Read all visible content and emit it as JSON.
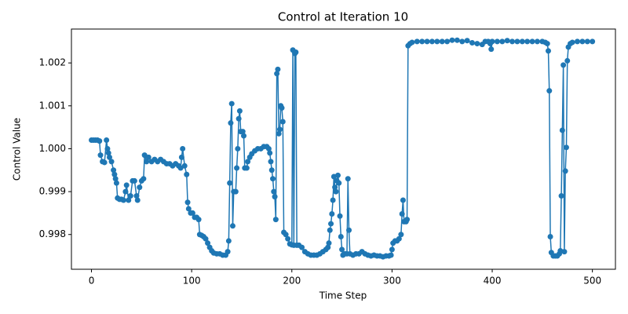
{
  "chart_data": {
    "type": "line",
    "title": "Control at Iteration 10",
    "x_label": "Time Step",
    "y_label": "Control Value",
    "series": [
      {
        "name": "Control",
        "color": "#1f77b4",
        "x": [
          0,
          2,
          4,
          6,
          8,
          9,
          11,
          13,
          15,
          16,
          17,
          18,
          20,
          22,
          23,
          24,
          25,
          26,
          28,
          30,
          32,
          34,
          35,
          37,
          39,
          41,
          43,
          45,
          46,
          48,
          50,
          52,
          53,
          55,
          57,
          60,
          63,
          66,
          69,
          72,
          75,
          78,
          81,
          84,
          87,
          89,
          90,
          91,
          93,
          95,
          96,
          97,
          99,
          101,
          103,
          105,
          107,
          108,
          110,
          112,
          114,
          116,
          118,
          120,
          122,
          125,
          128,
          131,
          134,
          136,
          137,
          138,
          139,
          140,
          141,
          142,
          144,
          145,
          146,
          147,
          148,
          149,
          151,
          152,
          153,
          155,
          156,
          158,
          160,
          163,
          166,
          169,
          172,
          175,
          177,
          178,
          179,
          180,
          181,
          182,
          183,
          184,
          185,
          186,
          187,
          188,
          189,
          190,
          191,
          192,
          194,
          196,
          198,
          200,
          201,
          202,
          203,
          204,
          205,
          207,
          210,
          213,
          216,
          219,
          222,
          225,
          228,
          231,
          234,
          236,
          237,
          238,
          239,
          240,
          241,
          242,
          243,
          244,
          245,
          246,
          247,
          248,
          249,
          250,
          251,
          253,
          255,
          256,
          257,
          258,
          261,
          264,
          267,
          270,
          273,
          276,
          279,
          282,
          285,
          288,
          291,
          294,
          297,
          299,
          300,
          301,
          303,
          305,
          307,
          309,
          310,
          311,
          312,
          314,
          315,
          316,
          318,
          320,
          325,
          330,
          335,
          340,
          345,
          350,
          355,
          360,
          365,
          370,
          375,
          380,
          385,
          390,
          393,
          396,
          398,
          399,
          400,
          405,
          410,
          415,
          420,
          425,
          430,
          435,
          440,
          445,
          450,
          453,
          455,
          456,
          457,
          458,
          459,
          461,
          463,
          465,
          467,
          468,
          469,
          470,
          471,
          472,
          473,
          474,
          475,
          476,
          478,
          480,
          485,
          490,
          495,
          500
        ],
        "values": [
          1.0002,
          1.0002,
          1.0002,
          1.0002,
          1.00018,
          0.99985,
          0.9997,
          0.99968,
          1.0002,
          1.0,
          0.9999,
          0.9998,
          0.9997,
          0.9995,
          0.9994,
          0.9993,
          0.9992,
          0.99885,
          0.99882,
          0.99882,
          0.9988,
          0.999,
          0.99915,
          0.9988,
          0.9989,
          0.99925,
          0.99925,
          0.9989,
          0.9988,
          0.9991,
          0.99925,
          0.9993,
          0.99985,
          0.9997,
          0.9998,
          0.9997,
          0.99975,
          0.9997,
          0.99975,
          0.9997,
          0.99965,
          0.99965,
          0.9996,
          0.99965,
          0.9996,
          0.99955,
          0.9998,
          1.0,
          0.9996,
          0.9994,
          0.99875,
          0.9986,
          0.9985,
          0.9985,
          0.9984,
          0.9984,
          0.99835,
          0.998,
          0.99798,
          0.99795,
          0.9979,
          0.9978,
          0.9977,
          0.99762,
          0.99757,
          0.99755,
          0.99755,
          0.99752,
          0.99752,
          0.9976,
          0.99785,
          0.9992,
          1.0006,
          1.00105,
          0.9982,
          0.999,
          0.999,
          0.99955,
          1.0,
          1.0007,
          1.00088,
          1.0004,
          1.0004,
          1.0003,
          0.99955,
          0.99955,
          0.9997,
          0.9998,
          0.99988,
          0.99995,
          1.0,
          1.0,
          1.00005,
          1.00005,
          1.0,
          0.9999,
          0.9997,
          0.9995,
          0.9993,
          0.999,
          0.99888,
          0.99835,
          1.00175,
          1.00185,
          1.00035,
          1.00045,
          1.001,
          1.00095,
          1.00063,
          0.99805,
          0.998,
          0.9979,
          0.99778,
          0.99776,
          1.0023,
          0.99775,
          1.00222,
          1.00225,
          0.99775,
          0.99775,
          0.9977,
          0.9976,
          0.99755,
          0.99752,
          0.99752,
          0.99752,
          0.99755,
          0.9976,
          0.99765,
          0.9977,
          0.9978,
          0.9981,
          0.99825,
          0.99848,
          0.9988,
          0.99935,
          0.9991,
          0.999,
          0.99925,
          0.99938,
          0.9992,
          0.99843,
          0.99795,
          0.99765,
          0.99752,
          0.99755,
          0.99755,
          0.9993,
          0.9981,
          0.99755,
          0.99752,
          0.99755,
          0.99755,
          0.9976,
          0.99755,
          0.99752,
          0.9975,
          0.99752,
          0.9975,
          0.9975,
          0.99748,
          0.9975,
          0.9975,
          0.99752,
          0.99765,
          0.9978,
          0.99785,
          0.99785,
          0.9979,
          0.998,
          0.99848,
          0.9988,
          0.9983,
          0.9983,
          0.99835,
          1.0024,
          1.00245,
          1.00248,
          1.0025,
          1.0025,
          1.0025,
          1.0025,
          1.0025,
          1.0025,
          1.0025,
          1.00253,
          1.00253,
          1.0025,
          1.00252,
          1.00247,
          1.00245,
          1.00243,
          1.0025,
          1.0025,
          1.00245,
          1.00232,
          1.0025,
          1.0025,
          1.0025,
          1.00252,
          1.0025,
          1.0025,
          1.0025,
          1.0025,
          1.0025,
          1.0025,
          1.0025,
          1.00248,
          1.00245,
          1.00228,
          1.00135,
          0.99795,
          0.99758,
          0.9975,
          0.9975,
          0.9975,
          0.99755,
          0.99762,
          0.9989,
          1.00043,
          1.00195,
          0.9976,
          0.99948,
          1.00003,
          1.00205,
          1.00237,
          1.00245,
          1.00248,
          1.0025,
          1.0025,
          1.0025,
          1.0025
        ]
      }
    ],
    "xlim": [
      -20,
      523
    ],
    "xticks": [
      0,
      100,
      200,
      300,
      400,
      500
    ],
    "ylim": [
      0.99719,
      1.00279
    ],
    "yticks": [
      0.998,
      0.999,
      {
        "value": 1,
        "label": "1.000"
      },
      1.001,
      1.002
    ]
  }
}
